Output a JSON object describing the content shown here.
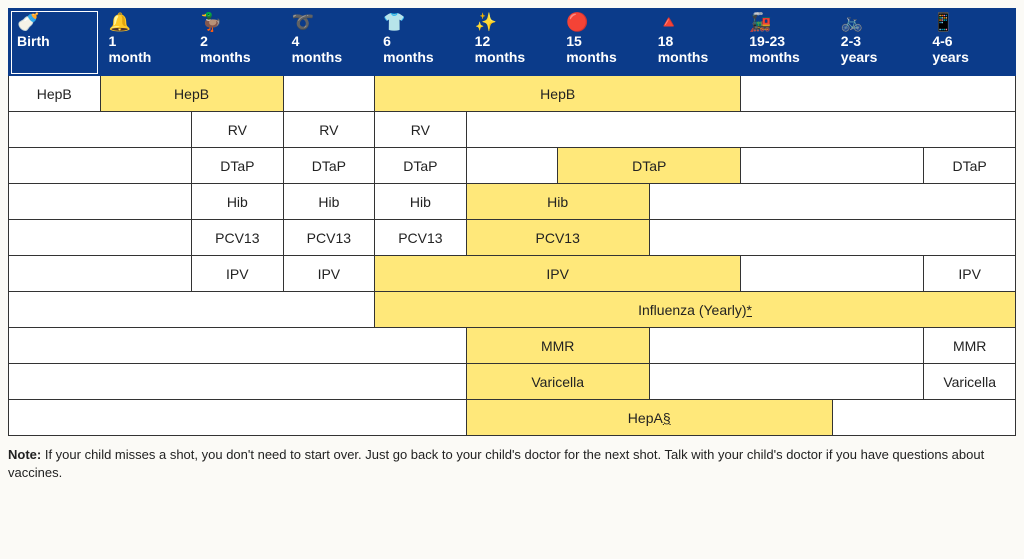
{
  "colors": {
    "header_bg": "#0b3b8a",
    "header_text": "#ffffff",
    "cell_bg": "#ffffff",
    "highlight_bg": "#ffe87a",
    "border": "#333333",
    "page_bg": "#fbfaf6"
  },
  "columns": [
    {
      "label": "Birth",
      "icon": "🍼"
    },
    {
      "label": "1 month",
      "icon": "🔔"
    },
    {
      "label": "2 months",
      "icon": "🦆"
    },
    {
      "label": "4 months",
      "icon": "➰"
    },
    {
      "label": "6 months",
      "icon": "👕"
    },
    {
      "label": "12 months",
      "icon": "✨"
    },
    {
      "label": "15 months",
      "icon": "🔴"
    },
    {
      "label": "18 months",
      "icon": "🔺"
    },
    {
      "label": "19-23 months",
      "icon": "🚂"
    },
    {
      "label": "2-3 years",
      "icon": "🚲"
    },
    {
      "label": "4-6 years",
      "icon": "📱"
    }
  ],
  "rows": [
    [
      {
        "span": 1,
        "label": "HepB",
        "hl": false
      },
      {
        "span": 2,
        "label": "HepB",
        "hl": true
      },
      {
        "span": 1,
        "label": "",
        "hl": false
      },
      {
        "span": 4,
        "label": "HepB",
        "hl": true
      },
      {
        "span": 3,
        "label": "",
        "hl": false
      }
    ],
    [
      {
        "span": 2,
        "label": "",
        "hl": false
      },
      {
        "span": 1,
        "label": "RV",
        "hl": false
      },
      {
        "span": 1,
        "label": "RV",
        "hl": false
      },
      {
        "span": 1,
        "label": "RV",
        "hl": false
      },
      {
        "span": 6,
        "label": "",
        "hl": false
      }
    ],
    [
      {
        "span": 2,
        "label": "",
        "hl": false
      },
      {
        "span": 1,
        "label": "DTaP",
        "hl": false
      },
      {
        "span": 1,
        "label": "DTaP",
        "hl": false
      },
      {
        "span": 1,
        "label": "DTaP",
        "hl": false
      },
      {
        "span": 1,
        "label": "",
        "hl": false
      },
      {
        "span": 2,
        "label": "DTaP",
        "hl": true
      },
      {
        "span": 2,
        "label": "",
        "hl": false
      },
      {
        "span": 1,
        "label": "DTaP",
        "hl": false
      }
    ],
    [
      {
        "span": 2,
        "label": "",
        "hl": false
      },
      {
        "span": 1,
        "label": "Hib",
        "hl": false
      },
      {
        "span": 1,
        "label": "Hib",
        "hl": false
      },
      {
        "span": 1,
        "label": "Hib",
        "hl": false
      },
      {
        "span": 2,
        "label": "Hib",
        "hl": true
      },
      {
        "span": 4,
        "label": "",
        "hl": false
      }
    ],
    [
      {
        "span": 2,
        "label": "",
        "hl": false
      },
      {
        "span": 1,
        "label": "PCV13",
        "hl": false
      },
      {
        "span": 1,
        "label": "PCV13",
        "hl": false
      },
      {
        "span": 1,
        "label": "PCV13",
        "hl": false
      },
      {
        "span": 2,
        "label": "PCV13",
        "hl": true
      },
      {
        "span": 4,
        "label": "",
        "hl": false
      }
    ],
    [
      {
        "span": 2,
        "label": "",
        "hl": false
      },
      {
        "span": 1,
        "label": "IPV",
        "hl": false
      },
      {
        "span": 1,
        "label": "IPV",
        "hl": false
      },
      {
        "span": 4,
        "label": "IPV",
        "hl": true
      },
      {
        "span": 2,
        "label": "",
        "hl": false
      },
      {
        "span": 1,
        "label": "IPV",
        "hl": false
      }
    ],
    [
      {
        "span": 4,
        "label": "",
        "hl": false
      },
      {
        "span": 7,
        "label": "Influenza (Yearly)",
        "hl": true,
        "footnote": "*"
      }
    ],
    [
      {
        "span": 5,
        "label": "",
        "hl": false
      },
      {
        "span": 2,
        "label": "MMR",
        "hl": true
      },
      {
        "span": 3,
        "label": "",
        "hl": false
      },
      {
        "span": 1,
        "label": "MMR",
        "hl": false
      }
    ],
    [
      {
        "span": 5,
        "label": "",
        "hl": false
      },
      {
        "span": 2,
        "label": "Varicella",
        "hl": true
      },
      {
        "span": 3,
        "label": "",
        "hl": false
      },
      {
        "span": 1,
        "label": "Varicella",
        "hl": false
      }
    ],
    [
      {
        "span": 5,
        "label": "",
        "hl": false
      },
      {
        "span": 4,
        "label": "HepA",
        "hl": true,
        "footnote": "§"
      },
      {
        "span": 2,
        "label": "",
        "hl": false
      }
    ]
  ],
  "note": {
    "label": "Note:",
    "text": "If your child misses a shot, you don't need to start over. Just go back to your child's doctor for the next shot. Talk with your child's doctor if you have questions about vaccines."
  }
}
